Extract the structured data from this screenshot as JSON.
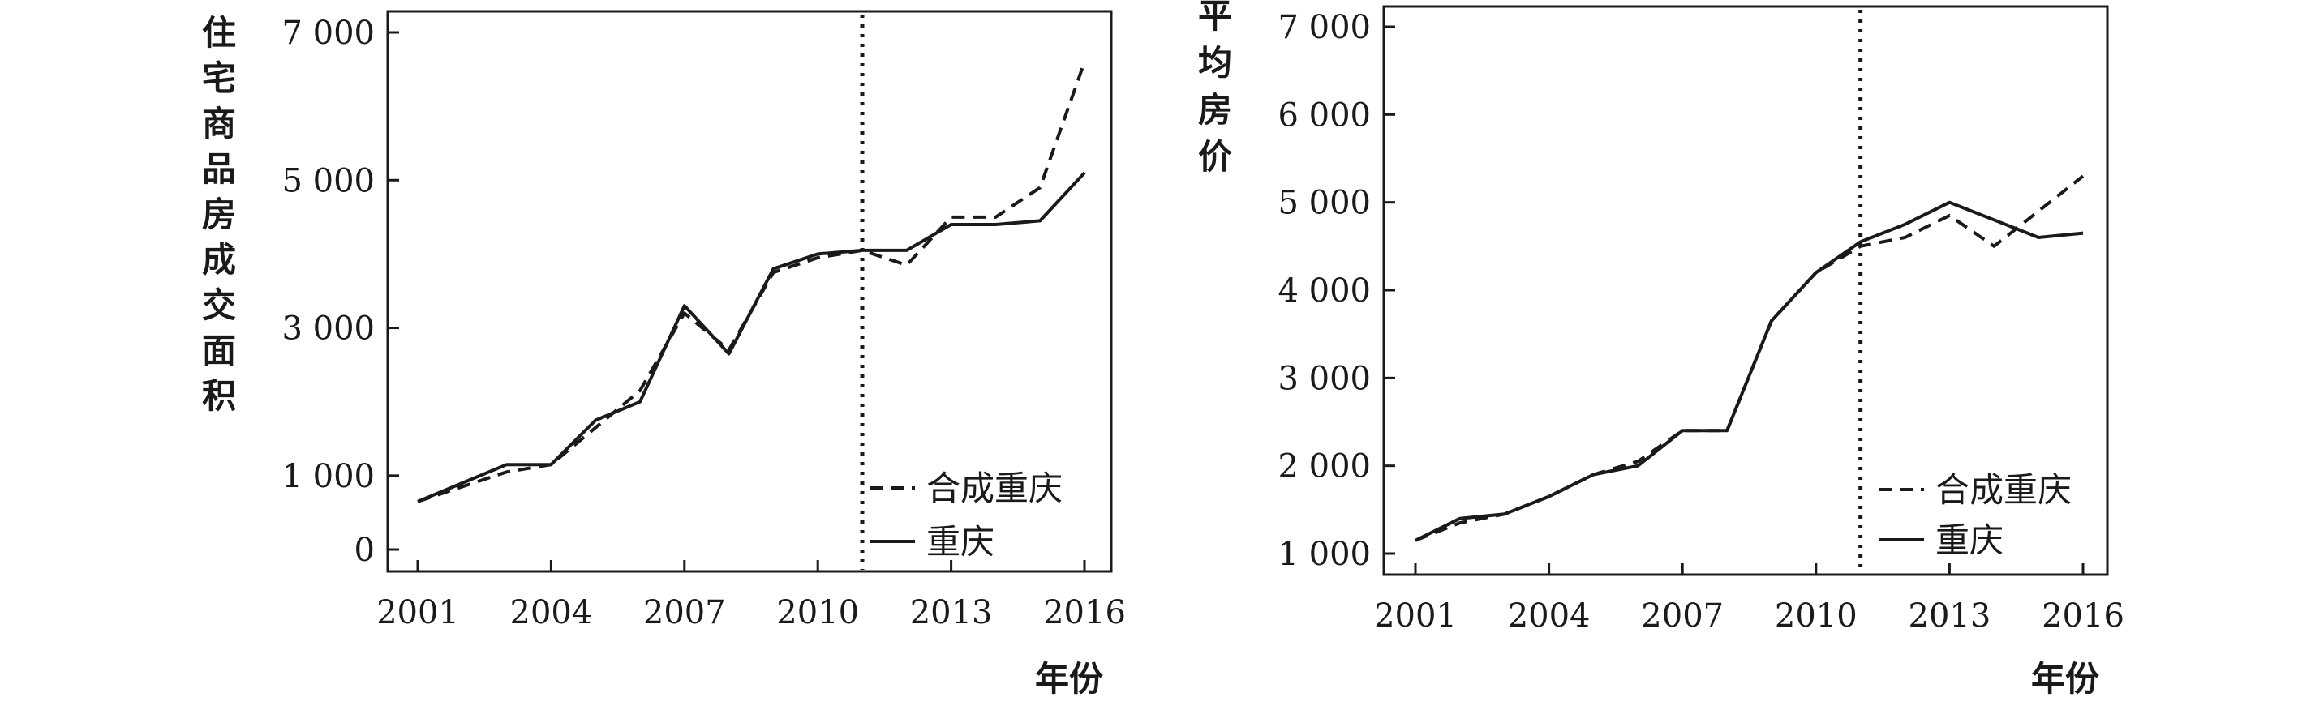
{
  "chart_data": [
    {
      "type": "line",
      "ylabel": "住宅商品房成交面积",
      "xlabel": "年份",
      "x": [
        2001,
        2002,
        2003,
        2004,
        2005,
        2006,
        2007,
        2008,
        2009,
        2010,
        2011,
        2012,
        2013,
        2014,
        2015,
        2016
      ],
      "xticks": [
        2001,
        2004,
        2007,
        2010,
        2013,
        2016
      ],
      "xtick_labels": [
        "2001",
        "2004",
        "2007",
        "2010",
        "2013",
        "2016"
      ],
      "yticks": [
        0,
        1000,
        3000,
        5000,
        7000
      ],
      "ytick_labels": [
        "0",
        "1 000",
        "3 000",
        "5 000",
        "7 000"
      ],
      "xlim": [
        2001,
        2016
      ],
      "ylim": [
        0,
        7000
      ],
      "treatment_year": 2011,
      "legend_position": "bottom-right",
      "series": [
        {
          "name": "合成重庆",
          "style": "dashed",
          "values": [
            650,
            850,
            1050,
            1150,
            1650,
            2150,
            3200,
            2700,
            3750,
            3950,
            4050,
            3850,
            4500,
            4500,
            4900,
            6600
          ]
        },
        {
          "name": "重庆",
          "style": "solid",
          "values": [
            650,
            900,
            1150,
            1150,
            1750,
            2000,
            3300,
            2650,
            3800,
            4000,
            4050,
            4050,
            4400,
            4400,
            4450,
            5100
          ]
        }
      ]
    },
    {
      "type": "line",
      "ylabel": "平均房价",
      "xlabel": "年份",
      "x": [
        2001,
        2002,
        2003,
        2004,
        2005,
        2006,
        2007,
        2008,
        2009,
        2010,
        2011,
        2012,
        2013,
        2014,
        2015,
        2016
      ],
      "xticks": [
        2001,
        2004,
        2007,
        2010,
        2013,
        2016
      ],
      "xtick_labels": [
        "2001",
        "2004",
        "2007",
        "2010",
        "2013",
        "2016"
      ],
      "yticks": [
        1000,
        2000,
        3000,
        4000,
        5000,
        6000,
        7000
      ],
      "ytick_labels": [
        "1 000",
        "2 000",
        "3 000",
        "4 000",
        "5 000",
        "6 000",
        "7 000"
      ],
      "xlim": [
        2001,
        2016
      ],
      "ylim": [
        1000,
        7000
      ],
      "treatment_year": 2011,
      "legend_position": "bottom-right",
      "series": [
        {
          "name": "合成重庆",
          "style": "dashed",
          "values": [
            1150,
            1350,
            1450,
            1650,
            1900,
            2050,
            2400,
            2400,
            3650,
            4200,
            4500,
            4600,
            4850,
            4500,
            4900,
            5300
          ]
        },
        {
          "name": "重庆",
          "style": "solid",
          "values": [
            1150,
            1400,
            1450,
            1650,
            1900,
            2000,
            2400,
            2400,
            3650,
            4200,
            4550,
            4750,
            5000,
            4800,
            4600,
            4650
          ]
        }
      ]
    }
  ]
}
